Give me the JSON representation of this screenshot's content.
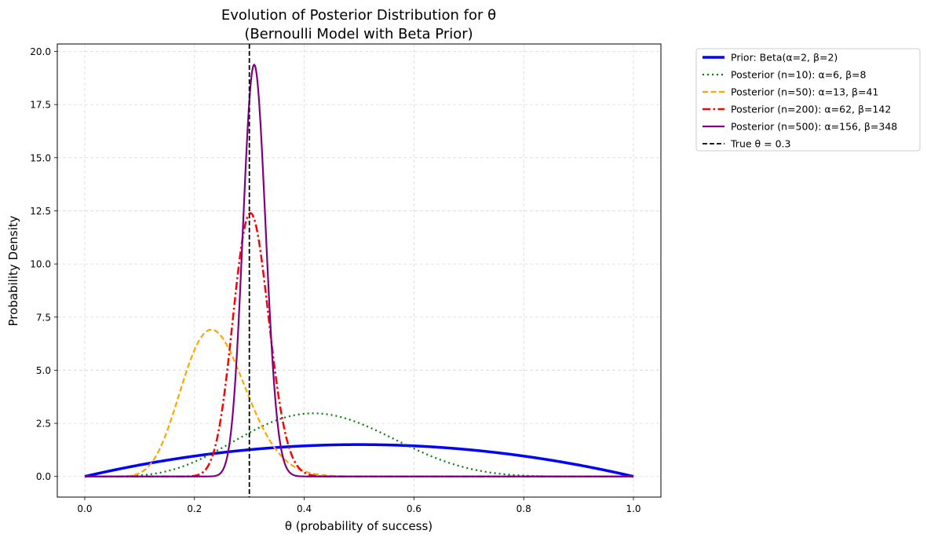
{
  "chart_data": {
    "type": "line",
    "title": "Evolution of Posterior Distribution for θ",
    "subtitle": "(Bernoulli Model with Beta Prior)",
    "xlabel": "θ (probability of success)",
    "ylabel": "Probability Density",
    "xlim": [
      -0.05,
      1.05
    ],
    "ylim": [
      -0.97,
      20.35
    ],
    "xticks": [
      0.0,
      0.2,
      0.4,
      0.6,
      0.8,
      1.0
    ],
    "xtick_labels": [
      "0.0",
      "0.2",
      "0.4",
      "0.6",
      "0.8",
      "1.0"
    ],
    "yticks": [
      0.0,
      2.5,
      5.0,
      7.5,
      10.0,
      12.5,
      15.0,
      17.5,
      20.0
    ],
    "ytick_labels": [
      "0.0",
      "2.5",
      "5.0",
      "7.5",
      "10.0",
      "12.5",
      "15.0",
      "17.5",
      "20.0"
    ],
    "grid": true,
    "legend_position": "outside-right-top",
    "series": [
      {
        "name": "Prior: Beta(α=2, β=2)",
        "distribution": "beta",
        "alpha": 2,
        "beta": 2,
        "color": "#0000ff",
        "style": "solid"
      },
      {
        "name": "Posterior (n=10): α=6, β=8",
        "distribution": "beta",
        "alpha": 6,
        "beta": 8,
        "color": "#008000",
        "style": "dotted"
      },
      {
        "name": "Posterior (n=50): α=13, β=41",
        "distribution": "beta",
        "alpha": 13,
        "beta": 41,
        "color": "#ffa500",
        "style": "dashed"
      },
      {
        "name": "Posterior (n=200): α=62, β=142",
        "distribution": "beta",
        "alpha": 62,
        "beta": 142,
        "color": "#ff0000",
        "style": "dashdot"
      },
      {
        "name": "Posterior (n=500): α=156, β=348",
        "distribution": "beta",
        "alpha": 156,
        "beta": 348,
        "color": "#800080",
        "style": "solid"
      }
    ],
    "reference_line": {
      "name": "True θ = 0.3",
      "x": 0.3,
      "color": "#000000",
      "style": "dashed"
    }
  }
}
